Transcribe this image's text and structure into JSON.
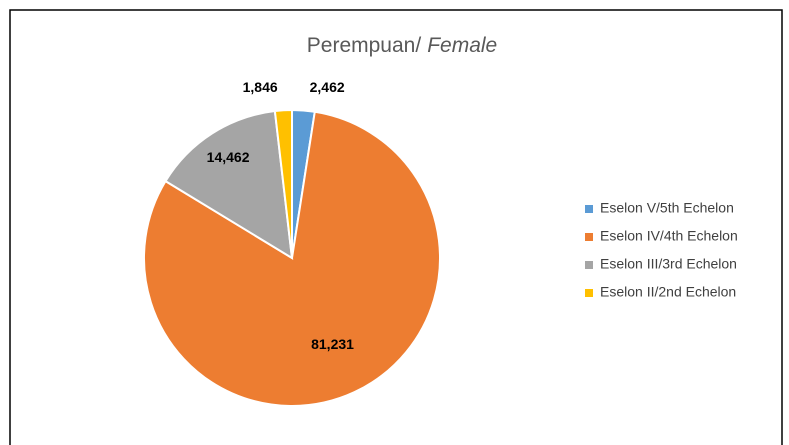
{
  "chart_data": {
    "type": "pie",
    "title": [
      "Perempuan/",
      "Female"
    ],
    "categories": [
      "Eselon V/5th Echelon",
      "Eselon IV/4th Echelon",
      "Eselon III/3rd Echelon",
      "Eselon II/2nd Echelon"
    ],
    "values": [
      2462,
      81231,
      14462,
      1846
    ],
    "value_labels": [
      "2,462",
      "81,231",
      "14,462",
      "1,846"
    ],
    "colors": [
      "#5b9bd5",
      "#ed7d31",
      "#a5a5a5",
      "#ffc000"
    ],
    "legend": "right"
  }
}
